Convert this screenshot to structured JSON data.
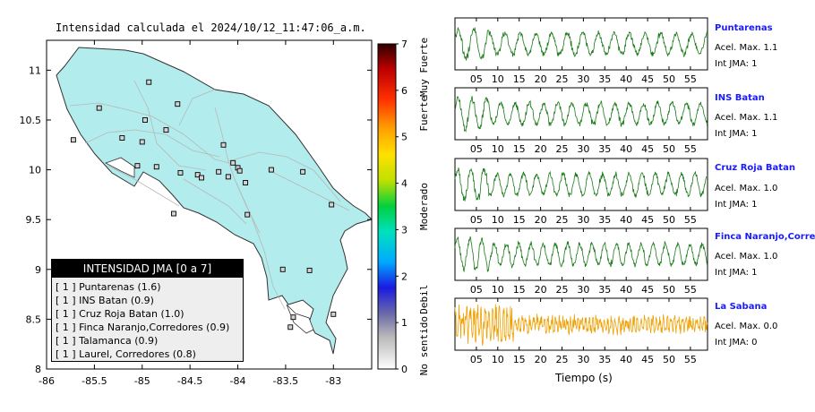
{
  "map": {
    "title": "Intensidad calculada el 2024/10/12_11:47:06_a.m.",
    "x_ticks": [
      "-86",
      "-85.5",
      "-85",
      "-84.5",
      "-84",
      "-83.5",
      "-83"
    ],
    "y_ticks": [
      "11",
      "10.5",
      "10",
      "9.5",
      "9",
      "8.5",
      "8"
    ],
    "land_color": "#b2ecec"
  },
  "legend": {
    "title": "INTENSIDAD JMA [0 a 7]",
    "rows": [
      {
        "box": "[ 1 ]",
        "text": "Puntarenas (1.6)"
      },
      {
        "box": "[ 1 ]",
        "text": "INS Batan (0.9)"
      },
      {
        "box": "[ 1 ]",
        "text": "Cruz Roja Batan (1.0)"
      },
      {
        "box": "[ 1 ]",
        "text": "Finca Naranjo,Corredores (0.9)"
      },
      {
        "box": "[ 1 ]",
        "text": "Talamanca (0.9)"
      },
      {
        "box": "[ 1 ]",
        "text": "Laurel, Corredores (0.8)"
      }
    ]
  },
  "colorbar": {
    "ticks": [
      "0",
      "1",
      "2",
      "3",
      "4",
      "5",
      "6",
      "7"
    ],
    "labels": [
      "No sentido",
      "Debil",
      "Moderado",
      "Fuerte",
      "Muy Fuerte"
    ]
  },
  "stations": [
    {
      "name": "Puntarenas",
      "acel": "Acel. Max. 1.1",
      "jma": "Int JMA: 1",
      "color": "#1a7a1a"
    },
    {
      "name": "INS Batan",
      "acel": "Acel. Max. 1.1",
      "jma": "Int JMA: 1",
      "color": "#1a7a1a"
    },
    {
      "name": "Cruz Roja Batan",
      "acel": "Acel. Max. 1.0",
      "jma": "Int JMA: 1",
      "color": "#1a7a1a"
    },
    {
      "name": "Finca Naranjo,Corredores",
      "acel": "Acel. Max. 1.0",
      "jma": "Int JMA: 1",
      "color": "#1a7a1a"
    },
    {
      "name": "La Sabana",
      "acel": "Acel. Max. 0.0",
      "jma": "Int JMA: 0",
      "color": "#f0a000"
    }
  ],
  "chart_data": [
    {
      "type": "scatter",
      "title": "Intensidad calculada el 2024/10/12_11:47:06_a.m.",
      "xlabel": "",
      "ylabel": "",
      "xlim": [
        -86,
        -82.6
      ],
      "ylim": [
        8,
        11.3
      ],
      "station_markers": [
        [
          -84.93,
          10.88
        ],
        [
          -84.63,
          10.66
        ],
        [
          -84.97,
          10.5
        ],
        [
          -85.45,
          10.62
        ],
        [
          -84.75,
          10.4
        ],
        [
          -85.21,
          10.32
        ],
        [
          -84.15,
          10.25
        ],
        [
          -85.0,
          10.28
        ],
        [
          -85.72,
          10.3
        ],
        [
          -85.05,
          10.04
        ],
        [
          -84.85,
          10.03
        ],
        [
          -84.05,
          10.07
        ],
        [
          -84.0,
          10.02
        ],
        [
          -83.98,
          9.99
        ],
        [
          -84.42,
          9.95
        ],
        [
          -84.6,
          9.97
        ],
        [
          -84.2,
          9.98
        ],
        [
          -84.38,
          9.92
        ],
        [
          -84.1,
          9.93
        ],
        [
          -83.92,
          9.87
        ],
        [
          -83.65,
          10.0
        ],
        [
          -83.32,
          9.98
        ],
        [
          -83.02,
          9.65
        ],
        [
          -84.67,
          9.56
        ],
        [
          -83.9,
          9.55
        ],
        [
          -83.53,
          9.0
        ],
        [
          -83.25,
          8.99
        ],
        [
          -83.0,
          8.55
        ],
        [
          -83.42,
          8.52
        ],
        [
          -83.45,
          8.42
        ]
      ]
    },
    {
      "type": "line",
      "xlabel": "Tiempo (s)",
      "x_ticks": [
        5,
        10,
        15,
        20,
        25,
        30,
        35,
        40,
        45,
        50,
        55
      ],
      "xlim": [
        0,
        59
      ],
      "series": [
        {
          "name": "Puntarenas"
        },
        {
          "name": "INS Batan"
        },
        {
          "name": "Cruz Roja Batan"
        },
        {
          "name": "Finca Naranjo,Corredores"
        },
        {
          "name": "La Sabana"
        }
      ]
    }
  ]
}
